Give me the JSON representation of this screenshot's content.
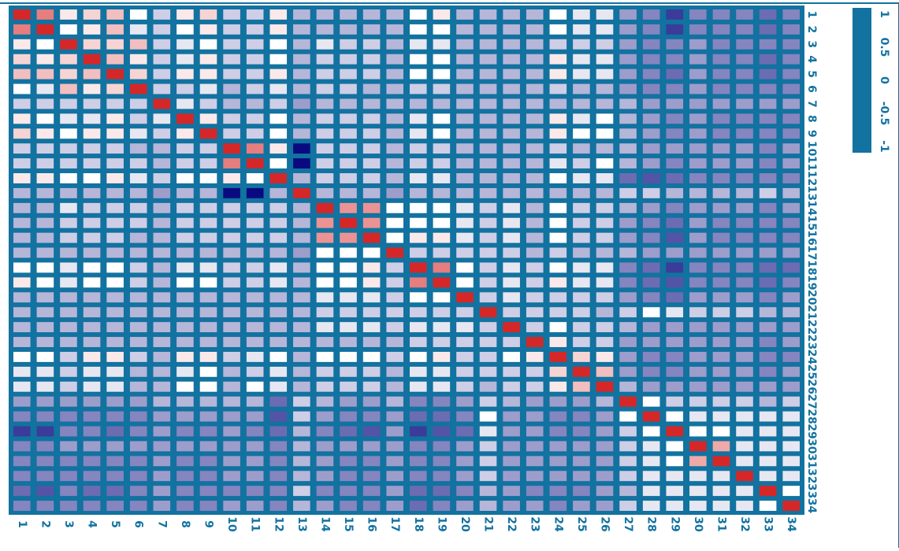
{
  "chart_data": {
    "type": "heatmap",
    "title": "",
    "xlabel": "",
    "ylabel": "",
    "grid": true,
    "legend": "right colorbar",
    "rows": 34,
    "cols": 34,
    "x_tick_labels": [
      "1",
      "2",
      "3",
      "4",
      "5",
      "6",
      "7",
      "8",
      "9",
      "10",
      "11",
      "12",
      "13",
      "14",
      "15",
      "16",
      "17",
      "18",
      "19",
      "20",
      "21",
      "22",
      "23",
      "24",
      "25",
      "26",
      "27",
      "28",
      "29",
      "30",
      "31",
      "32",
      "33",
      "34"
    ],
    "y_tick_labels": [
      "1",
      "2",
      "3",
      "4",
      "5",
      "6",
      "7",
      "8",
      "9",
      "10",
      "11",
      "12",
      "13",
      "14",
      "15",
      "16",
      "17",
      "18",
      "19",
      "20",
      "21",
      "22",
      "23",
      "24",
      "25",
      "26",
      "27",
      "28",
      "29",
      "30",
      "31",
      "32",
      "33",
      "34"
    ],
    "colorbar": {
      "min": -1,
      "max": 1,
      "ticks": [
        "1",
        "0.5",
        "0",
        "-0.5",
        "-1"
      ]
    },
    "colors": {
      "border": "#1272a0",
      "positive": "#d62728",
      "neutral": "#ffffff",
      "negative": "#0a0a80",
      "grid": "#1272a0"
    },
    "values": [
      [
        1.0,
        0.6,
        0.1,
        0.2,
        0.3,
        0.0,
        -0.2,
        0.1,
        0.2,
        -0.2,
        -0.2,
        0.1,
        -0.3,
        -0.3,
        -0.3,
        -0.3,
        -0.3,
        0.0,
        0.1,
        -0.3,
        -0.3,
        -0.3,
        -0.3,
        0.0,
        -0.1,
        -0.1,
        -0.4,
        -0.5,
        -0.8,
        -0.5,
        -0.5,
        -0.5,
        -0.6,
        -0.5
      ],
      [
        0.6,
        1.0,
        0.0,
        0.1,
        0.3,
        -0.1,
        -0.2,
        0.0,
        0.1,
        -0.2,
        -0.2,
        0.1,
        -0.3,
        -0.3,
        -0.3,
        -0.3,
        -0.3,
        0.0,
        0.0,
        -0.3,
        -0.3,
        -0.3,
        -0.3,
        0.0,
        -0.1,
        -0.1,
        -0.4,
        -0.5,
        -0.8,
        -0.5,
        -0.5,
        -0.5,
        -0.6,
        -0.5
      ],
      [
        0.1,
        0.0,
        1.0,
        0.2,
        0.2,
        0.3,
        -0.2,
        -0.1,
        0.0,
        -0.2,
        -0.2,
        0.0,
        -0.3,
        -0.1,
        -0.2,
        -0.2,
        -0.3,
        -0.1,
        -0.1,
        -0.3,
        -0.3,
        -0.3,
        -0.3,
        -0.2,
        -0.2,
        -0.2,
        -0.4,
        -0.5,
        -0.5,
        -0.4,
        -0.5,
        -0.5,
        -0.5,
        -0.5
      ],
      [
        0.2,
        0.1,
        0.2,
        1.0,
        0.3,
        0.1,
        -0.2,
        -0.1,
        0.1,
        -0.2,
        -0.2,
        0.0,
        -0.3,
        -0.2,
        -0.2,
        -0.2,
        -0.3,
        0.0,
        0.0,
        -0.3,
        -0.3,
        -0.3,
        -0.3,
        0.1,
        -0.1,
        -0.1,
        -0.4,
        -0.5,
        -0.5,
        -0.4,
        -0.5,
        -0.5,
        -0.6,
        -0.5
      ],
      [
        0.3,
        0.3,
        0.2,
        0.3,
        1.0,
        0.2,
        -0.2,
        0.1,
        0.1,
        -0.2,
        -0.2,
        0.1,
        -0.3,
        -0.2,
        -0.2,
        -0.2,
        -0.3,
        0.0,
        0.0,
        -0.3,
        -0.3,
        -0.3,
        -0.3,
        0.1,
        -0.1,
        -0.1,
        -0.4,
        -0.5,
        -0.6,
        -0.4,
        -0.5,
        -0.5,
        -0.6,
        -0.5
      ],
      [
        0.0,
        -0.1,
        0.3,
        0.1,
        0.2,
        1.0,
        -0.2,
        -0.2,
        -0.1,
        -0.3,
        -0.2,
        -0.1,
        -0.3,
        -0.2,
        -0.2,
        -0.3,
        -0.3,
        -0.2,
        -0.2,
        -0.3,
        -0.3,
        -0.3,
        -0.3,
        -0.2,
        -0.3,
        -0.3,
        -0.4,
        -0.5,
        -0.5,
        -0.4,
        -0.5,
        -0.5,
        -0.5,
        -0.5
      ],
      [
        -0.2,
        -0.2,
        -0.2,
        -0.2,
        -0.2,
        -0.2,
        1.0,
        -0.1,
        -0.2,
        -0.3,
        -0.3,
        -0.2,
        -0.4,
        -0.3,
        -0.3,
        -0.3,
        -0.3,
        -0.3,
        -0.3,
        -0.3,
        -0.3,
        -0.3,
        -0.3,
        -0.3,
        -0.3,
        -0.3,
        -0.3,
        -0.4,
        -0.4,
        -0.4,
        -0.4,
        -0.4,
        -0.4,
        -0.4
      ],
      [
        0.1,
        0.0,
        -0.1,
        -0.1,
        0.1,
        -0.2,
        -0.1,
        1.0,
        0.1,
        -0.2,
        -0.2,
        0.0,
        -0.3,
        -0.2,
        -0.2,
        -0.2,
        -0.3,
        -0.1,
        0.0,
        -0.3,
        -0.3,
        -0.3,
        -0.3,
        0.1,
        -0.1,
        0.0,
        -0.3,
        -0.4,
        -0.5,
        -0.4,
        -0.5,
        -0.5,
        -0.5,
        -0.5
      ],
      [
        0.2,
        0.1,
        0.0,
        0.1,
        0.1,
        -0.1,
        -0.2,
        0.1,
        1.0,
        -0.2,
        -0.2,
        0.0,
        -0.3,
        -0.2,
        -0.2,
        -0.2,
        -0.3,
        -0.1,
        0.0,
        -0.3,
        -0.3,
        -0.3,
        -0.3,
        0.1,
        0.0,
        0.0,
        -0.3,
        -0.4,
        -0.5,
        -0.4,
        -0.5,
        -0.5,
        -0.5,
        -0.5
      ],
      [
        -0.2,
        -0.2,
        -0.2,
        -0.2,
        -0.2,
        -0.3,
        -0.3,
        -0.2,
        -0.2,
        1.0,
        0.6,
        0.1,
        -1.0,
        -0.2,
        -0.2,
        -0.2,
        -0.3,
        -0.2,
        -0.2,
        -0.3,
        -0.3,
        -0.3,
        -0.3,
        -0.2,
        -0.3,
        -0.3,
        -0.3,
        -0.4,
        -0.4,
        -0.4,
        -0.4,
        -0.4,
        -0.5,
        -0.4
      ],
      [
        -0.2,
        -0.2,
        -0.2,
        -0.2,
        -0.2,
        -0.2,
        -0.3,
        -0.2,
        -0.2,
        0.6,
        1.0,
        0.0,
        -1.0,
        -0.2,
        -0.2,
        -0.2,
        -0.3,
        -0.2,
        -0.2,
        -0.3,
        -0.3,
        -0.3,
        -0.3,
        -0.1,
        -0.2,
        0.0,
        -0.3,
        -0.4,
        -0.5,
        -0.4,
        -0.4,
        -0.4,
        -0.5,
        -0.4
      ],
      [
        0.1,
        0.1,
        0.0,
        0.0,
        0.1,
        -0.1,
        -0.2,
        0.0,
        0.0,
        0.1,
        0.0,
        1.0,
        -0.3,
        -0.2,
        -0.2,
        -0.2,
        -0.3,
        -0.1,
        -0.1,
        -0.3,
        -0.3,
        -0.3,
        -0.3,
        0.0,
        -0.1,
        -0.1,
        -0.6,
        -0.7,
        -0.6,
        -0.5,
        -0.5,
        -0.5,
        -0.5,
        -0.5
      ],
      [
        -0.3,
        -0.3,
        -0.3,
        -0.3,
        -0.3,
        -0.3,
        -0.4,
        -0.3,
        -0.3,
        -1.0,
        -1.0,
        -0.3,
        1.0,
        -0.3,
        -0.3,
        -0.3,
        -0.4,
        -0.3,
        -0.3,
        -0.3,
        -0.3,
        -0.3,
        -0.3,
        -0.3,
        -0.3,
        -0.3,
        -0.2,
        -0.2,
        -0.3,
        -0.3,
        -0.3,
        -0.3,
        -0.2,
        -0.3
      ],
      [
        -0.3,
        -0.3,
        -0.1,
        -0.2,
        -0.2,
        -0.2,
        -0.3,
        -0.2,
        -0.2,
        -0.2,
        -0.2,
        -0.2,
        -0.3,
        1.0,
        0.5,
        0.5,
        0.0,
        0.0,
        0.0,
        -0.1,
        -0.2,
        -0.1,
        -0.3,
        0.0,
        -0.2,
        -0.2,
        -0.3,
        -0.4,
        -0.5,
        -0.4,
        -0.4,
        -0.4,
        -0.5,
        -0.4
      ],
      [
        -0.3,
        -0.3,
        -0.2,
        -0.2,
        -0.2,
        -0.2,
        -0.3,
        -0.2,
        -0.2,
        -0.2,
        -0.2,
        -0.2,
        -0.3,
        0.5,
        1.0,
        0.5,
        0.0,
        0.0,
        0.0,
        -0.1,
        -0.2,
        -0.1,
        -0.3,
        0.0,
        -0.2,
        -0.2,
        -0.4,
        -0.5,
        -0.6,
        -0.4,
        -0.5,
        -0.5,
        -0.5,
        -0.5
      ],
      [
        -0.3,
        -0.3,
        -0.2,
        -0.2,
        -0.2,
        -0.3,
        -0.3,
        -0.2,
        -0.2,
        -0.2,
        -0.2,
        -0.2,
        -0.3,
        0.5,
        0.5,
        1.0,
        0.0,
        0.1,
        0.1,
        -0.1,
        -0.2,
        -0.1,
        -0.3,
        0.0,
        -0.2,
        -0.2,
        -0.4,
        -0.5,
        -0.7,
        -0.4,
        -0.5,
        -0.5,
        -0.5,
        -0.5
      ],
      [
        -0.3,
        -0.3,
        -0.3,
        -0.3,
        -0.3,
        -0.3,
        -0.3,
        -0.3,
        -0.3,
        -0.3,
        -0.3,
        -0.3,
        -0.4,
        0.0,
        0.0,
        0.0,
        1.0,
        -0.2,
        -0.2,
        -0.2,
        -0.2,
        -0.2,
        -0.3,
        -0.2,
        -0.3,
        -0.3,
        -0.3,
        -0.4,
        -0.4,
        -0.4,
        -0.4,
        -0.4,
        -0.4,
        -0.4
      ],
      [
        0.0,
        0.0,
        -0.1,
        0.0,
        0.0,
        -0.2,
        -0.3,
        -0.1,
        -0.1,
        -0.2,
        -0.2,
        -0.1,
        -0.3,
        0.0,
        0.0,
        0.1,
        -0.2,
        1.0,
        0.6,
        0.0,
        -0.2,
        -0.1,
        -0.2,
        0.0,
        -0.1,
        -0.1,
        -0.5,
        -0.6,
        -0.8,
        -0.5,
        -0.5,
        -0.5,
        -0.6,
        -0.6
      ],
      [
        0.1,
        0.0,
        -0.1,
        0.0,
        0.0,
        -0.2,
        -0.3,
        0.0,
        0.0,
        -0.2,
        -0.2,
        -0.1,
        -0.3,
        0.0,
        0.0,
        0.1,
        -0.2,
        0.6,
        1.0,
        0.0,
        -0.2,
        -0.1,
        -0.2,
        0.1,
        -0.1,
        -0.1,
        -0.5,
        -0.6,
        -0.7,
        -0.5,
        -0.5,
        -0.5,
        -0.6,
        -0.5
      ],
      [
        -0.3,
        -0.3,
        -0.3,
        -0.3,
        -0.3,
        -0.3,
        -0.3,
        -0.3,
        -0.3,
        -0.3,
        -0.3,
        -0.3,
        -0.3,
        -0.1,
        -0.1,
        -0.1,
        -0.2,
        0.0,
        0.0,
        1.0,
        -0.2,
        -0.1,
        -0.2,
        -0.2,
        -0.2,
        -0.2,
        -0.4,
        -0.5,
        -0.6,
        -0.4,
        -0.4,
        -0.4,
        -0.5,
        -0.4
      ],
      [
        -0.3,
        -0.3,
        -0.3,
        -0.3,
        -0.3,
        -0.3,
        -0.3,
        -0.3,
        -0.3,
        -0.3,
        -0.3,
        -0.3,
        -0.3,
        -0.2,
        -0.2,
        -0.2,
        -0.2,
        -0.2,
        -0.2,
        -0.2,
        1.0,
        -0.2,
        -0.2,
        -0.2,
        -0.2,
        -0.3,
        -0.2,
        0.0,
        -0.1,
        -0.2,
        -0.2,
        -0.2,
        -0.3,
        -0.3
      ],
      [
        -0.3,
        -0.3,
        -0.3,
        -0.3,
        -0.3,
        -0.3,
        -0.3,
        -0.3,
        -0.3,
        -0.3,
        -0.3,
        -0.3,
        -0.3,
        -0.1,
        -0.1,
        -0.1,
        -0.2,
        -0.1,
        -0.1,
        -0.1,
        -0.2,
        1.0,
        -0.2,
        0.0,
        -0.2,
        -0.2,
        -0.3,
        -0.4,
        -0.4,
        -0.4,
        -0.4,
        -0.4,
        -0.4,
        -0.4
      ],
      [
        -0.3,
        -0.3,
        -0.3,
        -0.3,
        -0.3,
        -0.3,
        -0.3,
        -0.3,
        -0.3,
        -0.3,
        -0.3,
        -0.3,
        -0.3,
        -0.3,
        -0.3,
        -0.3,
        -0.3,
        -0.2,
        -0.2,
        -0.2,
        -0.2,
        -0.2,
        1.0,
        0.1,
        -0.2,
        -0.2,
        -0.4,
        -0.4,
        -0.4,
        -0.4,
        -0.4,
        -0.4,
        -0.5,
        -0.4
      ],
      [
        0.0,
        0.0,
        -0.2,
        0.1,
        0.1,
        -0.2,
        -0.3,
        0.1,
        0.1,
        -0.2,
        -0.1,
        0.0,
        -0.3,
        0.0,
        0.0,
        0.0,
        -0.2,
        0.0,
        0.1,
        -0.2,
        -0.2,
        0.0,
        0.1,
        1.0,
        0.2,
        0.1,
        -0.4,
        -0.5,
        -0.5,
        -0.4,
        -0.4,
        -0.4,
        -0.5,
        -0.5
      ],
      [
        -0.1,
        -0.1,
        -0.2,
        -0.1,
        -0.1,
        -0.3,
        -0.3,
        -0.1,
        0.0,
        -0.3,
        -0.2,
        -0.1,
        -0.3,
        -0.2,
        -0.2,
        -0.2,
        -0.3,
        -0.1,
        -0.1,
        -0.2,
        -0.2,
        -0.2,
        -0.2,
        0.2,
        1.0,
        0.3,
        -0.4,
        -0.5,
        -0.5,
        -0.4,
        -0.4,
        -0.4,
        -0.5,
        -0.4
      ],
      [
        -0.1,
        -0.1,
        -0.2,
        -0.1,
        -0.1,
        -0.3,
        -0.3,
        0.0,
        0.0,
        -0.3,
        0.0,
        -0.1,
        -0.3,
        -0.2,
        -0.2,
        -0.2,
        -0.3,
        -0.1,
        -0.1,
        -0.2,
        -0.3,
        -0.2,
        -0.2,
        0.1,
        0.3,
        1.0,
        -0.3,
        -0.4,
        -0.4,
        -0.4,
        -0.4,
        -0.4,
        -0.4,
        -0.4
      ],
      [
        -0.4,
        -0.4,
        -0.4,
        -0.4,
        -0.4,
        -0.4,
        -0.3,
        -0.3,
        -0.3,
        -0.3,
        -0.3,
        -0.6,
        -0.2,
        -0.3,
        -0.4,
        -0.4,
        -0.3,
        -0.5,
        -0.5,
        -0.4,
        -0.2,
        -0.3,
        -0.4,
        -0.4,
        -0.4,
        -0.3,
        1.0,
        0.0,
        -0.2,
        -0.2,
        -0.2,
        -0.2,
        -0.3,
        -0.2
      ],
      [
        -0.5,
        -0.5,
        -0.5,
        -0.5,
        -0.5,
        -0.5,
        -0.4,
        -0.4,
        -0.4,
        -0.4,
        -0.4,
        -0.7,
        -0.2,
        -0.4,
        -0.5,
        -0.5,
        -0.4,
        -0.6,
        -0.6,
        -0.5,
        0.0,
        -0.4,
        -0.4,
        -0.5,
        -0.5,
        -0.4,
        0.0,
        1.0,
        0.0,
        -0.1,
        -0.1,
        -0.1,
        -0.1,
        -0.1
      ],
      [
        -0.8,
        -0.8,
        -0.5,
        -0.5,
        -0.6,
        -0.5,
        -0.4,
        -0.5,
        -0.5,
        -0.4,
        -0.5,
        -0.6,
        -0.3,
        -0.5,
        -0.6,
        -0.7,
        -0.4,
        -0.8,
        -0.7,
        -0.6,
        -0.1,
        -0.4,
        -0.4,
        -0.5,
        -0.5,
        -0.4,
        -0.2,
        0.0,
        1.0,
        0.0,
        0.0,
        -0.1,
        -0.1,
        -0.1
      ],
      [
        -0.5,
        -0.5,
        -0.4,
        -0.4,
        -0.4,
        -0.4,
        -0.4,
        -0.4,
        -0.4,
        -0.4,
        -0.4,
        -0.5,
        -0.3,
        -0.4,
        -0.4,
        -0.4,
        -0.4,
        -0.5,
        -0.5,
        -0.4,
        -0.2,
        -0.4,
        -0.4,
        -0.4,
        -0.4,
        -0.4,
        -0.2,
        -0.1,
        0.0,
        1.0,
        0.4,
        -0.1,
        -0.1,
        -0.1
      ],
      [
        -0.5,
        -0.5,
        -0.5,
        -0.5,
        -0.5,
        -0.5,
        -0.4,
        -0.5,
        -0.5,
        -0.4,
        -0.4,
        -0.5,
        -0.3,
        -0.4,
        -0.5,
        -0.5,
        -0.4,
        -0.5,
        -0.5,
        -0.4,
        -0.2,
        -0.4,
        -0.4,
        -0.4,
        -0.4,
        -0.4,
        -0.2,
        -0.1,
        0.0,
        0.4,
        1.0,
        -0.1,
        -0.1,
        -0.1
      ],
      [
        -0.5,
        -0.5,
        -0.5,
        -0.5,
        -0.5,
        -0.5,
        -0.4,
        -0.5,
        -0.5,
        -0.4,
        -0.4,
        -0.5,
        -0.3,
        -0.4,
        -0.5,
        -0.5,
        -0.4,
        -0.5,
        -0.5,
        -0.4,
        -0.2,
        -0.4,
        -0.4,
        -0.4,
        -0.4,
        -0.4,
        -0.2,
        -0.1,
        -0.1,
        -0.1,
        -0.1,
        1.0,
        -0.1,
        -0.1
      ],
      [
        -0.6,
        -0.7,
        -0.5,
        -0.6,
        -0.6,
        -0.5,
        -0.4,
        -0.5,
        -0.5,
        -0.5,
        -0.5,
        -0.5,
        -0.2,
        -0.5,
        -0.5,
        -0.5,
        -0.4,
        -0.6,
        -0.6,
        -0.5,
        -0.3,
        -0.4,
        -0.5,
        -0.5,
        -0.5,
        -0.4,
        -0.3,
        -0.1,
        -0.1,
        -0.1,
        -0.1,
        -0.1,
        1.0,
        0.0
      ],
      [
        -0.5,
        -0.5,
        -0.5,
        -0.5,
        -0.5,
        -0.5,
        -0.4,
        -0.5,
        -0.5,
        -0.4,
        -0.4,
        -0.5,
        -0.3,
        -0.4,
        -0.5,
        -0.5,
        -0.4,
        -0.6,
        -0.5,
        -0.4,
        -0.3,
        -0.4,
        -0.4,
        -0.5,
        -0.4,
        -0.4,
        -0.2,
        -0.1,
        -0.1,
        -0.1,
        -0.1,
        -0.1,
        0.0,
        1.0
      ]
    ]
  }
}
